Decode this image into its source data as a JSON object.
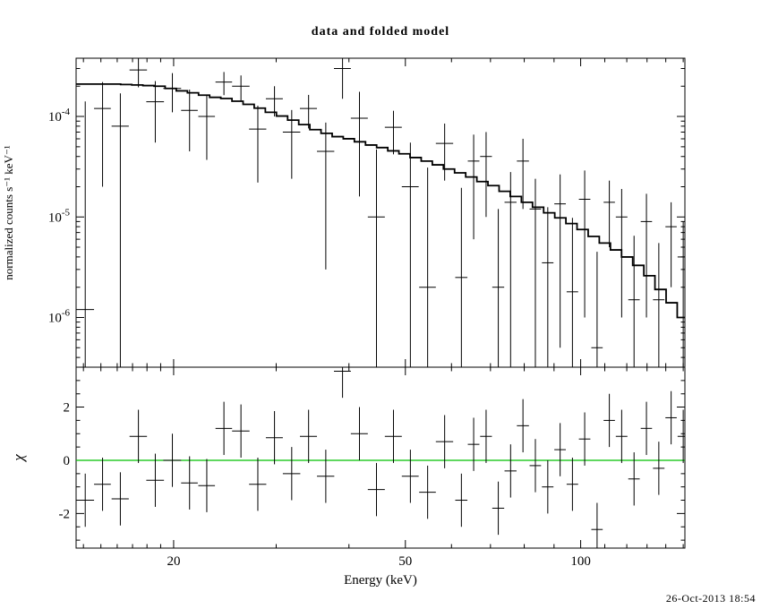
{
  "footer": {
    "timestamp": "26-Oct-2013 18:54"
  },
  "chart_data": {
    "type": "scatter",
    "title": "data and folded model",
    "xlabel": "Energy (keV)",
    "xscale": "log",
    "xlim": [
      13.6,
      151
    ],
    "x_major_ticks": [
      20,
      50,
      100
    ],
    "x_minor_ticks": [
      14,
      15,
      16,
      17,
      18,
      19,
      30,
      40,
      60,
      70,
      80,
      90,
      110,
      120,
      130,
      140,
      150
    ],
    "grid": "off",
    "legend": "none",
    "panels": [
      {
        "name": "spectrum",
        "ylabel": "normalized counts s⁻¹ keV⁻¹",
        "yscale": "log",
        "ylim": [
          3.2e-07,
          0.00038
        ],
        "y_major_exponents": [
          -4,
          -5,
          -6
        ],
        "model_color": "#000000",
        "model_bin_edges": [
          13.6,
          14.21,
          14.85,
          15.52,
          16.22,
          16.95,
          17.71,
          18.51,
          19.34,
          20.21,
          21.12,
          22.07,
          23.06,
          24.1,
          25.19,
          26.32,
          27.5,
          28.74,
          30.03,
          31.39,
          32.8,
          34.27,
          35.82,
          37.43,
          39.11,
          40.87,
          42.71,
          44.63,
          46.64,
          48.74,
          50.93,
          53.23,
          55.62,
          58.12,
          60.74,
          63.47,
          66.33,
          69.31,
          72.43,
          75.69,
          79.1,
          82.66,
          86.38,
          90.26,
          94.33,
          98.57,
          103.01,
          107.64,
          112.49,
          117.55,
          122.84,
          128.37,
          134.14,
          140.18,
          146.49,
          153.08
        ],
        "model_bin_values": [
          0.00021,
          0.00021,
          0.00021,
          0.00021,
          0.000208,
          0.000206,
          0.000203,
          0.0002,
          0.00019,
          0.00018,
          0.000172,
          0.000163,
          0.000155,
          0.000151,
          0.000142,
          0.000132,
          0.000121,
          0.00011,
          0.000101,
          9.2e-05,
          8.3e-05,
          7.4e-05,
          6.8e-05,
          6.3e-05,
          6e-05,
          5.6e-05,
          5.2e-05,
          4.9e-05,
          4.55e-05,
          4.25e-05,
          3.9e-05,
          3.6e-05,
          3.3e-05,
          3e-05,
          2.75e-05,
          2.5e-05,
          2.25e-05,
          2.05e-05,
          1.8e-05,
          1.6e-05,
          1.4e-05,
          1.25e-05,
          1.1e-05,
          9.8e-06,
          8.6e-06,
          7.5e-06,
          6.4e-06,
          5.5e-06,
          4.7e-06,
          4e-06,
          3.3e-06,
          2.6e-06,
          1.9e-06,
          1.4e-06,
          1e-06
        ],
        "points_format": [
          "energy_keV",
          "energy_err",
          "value",
          "value_err"
        ],
        "points": [
          [
            14.1,
            0.5,
            1.2e-06,
            0.00014
          ],
          [
            15.1,
            0.5,
            0.00012,
            0.0001
          ],
          [
            16.2,
            0.55,
            8e-05,
            9e-05
          ],
          [
            17.4,
            0.6,
            0.00029,
            9.5e-05
          ],
          [
            18.6,
            0.65,
            0.00014,
            8.5e-05
          ],
          [
            19.9,
            0.7,
            0.00019,
            8e-05
          ],
          [
            21.3,
            0.7,
            0.000115,
            7e-05
          ],
          [
            22.8,
            0.75,
            0.0001,
            6.3e-05
          ],
          [
            24.4,
            0.8,
            0.00022,
            5.7e-05
          ],
          [
            26.1,
            0.9,
            0.0002,
            5.6e-05
          ],
          [
            27.9,
            0.95,
            7.5e-05,
            5.3e-05
          ],
          [
            29.8,
            1.0,
            0.00015,
            5e-05
          ],
          [
            31.9,
            1.1,
            7e-05,
            4.6e-05
          ],
          [
            34.1,
            1.15,
            0.00012,
            4.4e-05
          ],
          [
            36.5,
            1.25,
            4.5e-05,
            4.2e-05
          ],
          [
            39.0,
            1.3,
            0.0003,
            0.00015
          ],
          [
            41.7,
            1.4,
            9.6e-05,
            8e-05
          ],
          [
            44.6,
            1.5,
            1e-05,
            3.7e-05
          ],
          [
            47.7,
            1.6,
            7.8e-05,
            3.6e-05
          ],
          [
            51.0,
            1.7,
            2e-05,
            3.5e-05
          ],
          [
            54.6,
            1.8,
            2e-06,
            2.9e-05
          ],
          [
            58.4,
            2.0,
            5.4e-05,
            3.1e-05
          ],
          [
            62.4,
            1.5,
            2.5e-06,
            1.7e-05
          ],
          [
            65.5,
            1.5,
            3.6e-05,
            3e-05
          ],
          [
            68.8,
            1.6,
            4e-05,
            3e-05
          ],
          [
            72.2,
            1.7,
            2e-06,
            1e-05
          ],
          [
            75.8,
            1.8,
            1.4e-05,
            1.4e-05
          ],
          [
            79.6,
            1.9,
            3.6e-05,
            2.4e-05
          ],
          [
            83.6,
            1.9,
            1.2e-05,
            1.2e-05
          ],
          [
            87.8,
            2.0,
            3.5e-06,
            9e-06
          ],
          [
            92.2,
            2.1,
            1.35e-05,
            1.3e-05
          ],
          [
            96.8,
            2.2,
            1.8e-06,
            8e-06
          ],
          [
            101.6,
            2.3,
            1.5e-05,
            1.4e-05
          ],
          [
            106.7,
            2.4,
            5e-07,
            4e-06
          ],
          [
            112.0,
            2.5,
            1.4e-05,
            9e-06
          ],
          [
            117.6,
            2.7,
            1e-05,
            9e-06
          ],
          [
            123.5,
            2.8,
            1.5e-06,
            5e-06
          ],
          [
            129.7,
            2.9,
            9e-06,
            8e-06
          ],
          [
            136.2,
            3.1,
            1.5e-06,
            4e-06
          ],
          [
            143.0,
            3.2,
            8e-06,
            6e-06
          ],
          [
            150.0,
            3.3,
            4e-06,
            5e-06
          ]
        ]
      },
      {
        "name": "residuals",
        "ylabel": "χ",
        "yscale": "linear",
        "ylim": [
          -3.3,
          3.5
        ],
        "y_major_ticks": [
          -2,
          0,
          2
        ],
        "zero_line_color": "#00C000",
        "points_format": [
          "energy_keV",
          "energy_err",
          "chi",
          "chi_err"
        ],
        "points": [
          [
            14.1,
            0.5,
            -1.5,
            1.0
          ],
          [
            15.1,
            0.5,
            -0.9,
            1.0
          ],
          [
            16.2,
            0.55,
            -1.45,
            1.0
          ],
          [
            17.4,
            0.6,
            0.9,
            1.0
          ],
          [
            18.6,
            0.65,
            -0.75,
            1.0
          ],
          [
            19.9,
            0.7,
            0.0,
            1.0
          ],
          [
            21.3,
            0.7,
            -0.85,
            1.0
          ],
          [
            22.8,
            0.75,
            -0.95,
            1.0
          ],
          [
            24.4,
            0.8,
            1.2,
            1.0
          ],
          [
            26.1,
            0.9,
            1.1,
            1.0
          ],
          [
            27.9,
            0.95,
            -0.9,
            1.0
          ],
          [
            29.8,
            1.0,
            0.85,
            1.0
          ],
          [
            31.9,
            1.1,
            -0.5,
            1.0
          ],
          [
            34.1,
            1.15,
            0.9,
            1.0
          ],
          [
            36.5,
            1.25,
            -0.6,
            1.0
          ],
          [
            39.0,
            1.3,
            3.35,
            1.0
          ],
          [
            41.7,
            1.4,
            1.0,
            1.0
          ],
          [
            44.6,
            1.5,
            -1.1,
            1.0
          ],
          [
            47.7,
            1.6,
            0.9,
            1.0
          ],
          [
            51.0,
            1.7,
            -0.6,
            1.0
          ],
          [
            54.6,
            1.8,
            -1.2,
            1.0
          ],
          [
            58.4,
            2.0,
            0.7,
            1.0
          ],
          [
            62.4,
            1.5,
            -1.5,
            1.0
          ],
          [
            65.5,
            1.5,
            0.6,
            1.0
          ],
          [
            68.8,
            1.6,
            0.9,
            1.0
          ],
          [
            72.2,
            1.7,
            -1.8,
            1.0
          ],
          [
            75.8,
            1.8,
            -0.4,
            1.0
          ],
          [
            79.6,
            1.9,
            1.3,
            1.0
          ],
          [
            83.6,
            1.9,
            -0.2,
            1.0
          ],
          [
            87.8,
            2.0,
            -1.0,
            1.0
          ],
          [
            92.2,
            2.1,
            0.4,
            1.0
          ],
          [
            96.8,
            2.2,
            -0.9,
            1.0
          ],
          [
            101.6,
            2.3,
            0.8,
            1.0
          ],
          [
            106.7,
            2.4,
            -2.6,
            1.0
          ],
          [
            112.0,
            2.5,
            1.5,
            1.0
          ],
          [
            117.6,
            2.7,
            0.9,
            1.0
          ],
          [
            123.5,
            2.8,
            -0.7,
            1.0
          ],
          [
            129.7,
            2.9,
            1.2,
            1.0
          ],
          [
            136.2,
            3.1,
            -0.3,
            1.0
          ],
          [
            143.0,
            3.2,
            1.6,
            1.0
          ],
          [
            150.0,
            3.3,
            0.9,
            1.0
          ]
        ]
      }
    ]
  }
}
